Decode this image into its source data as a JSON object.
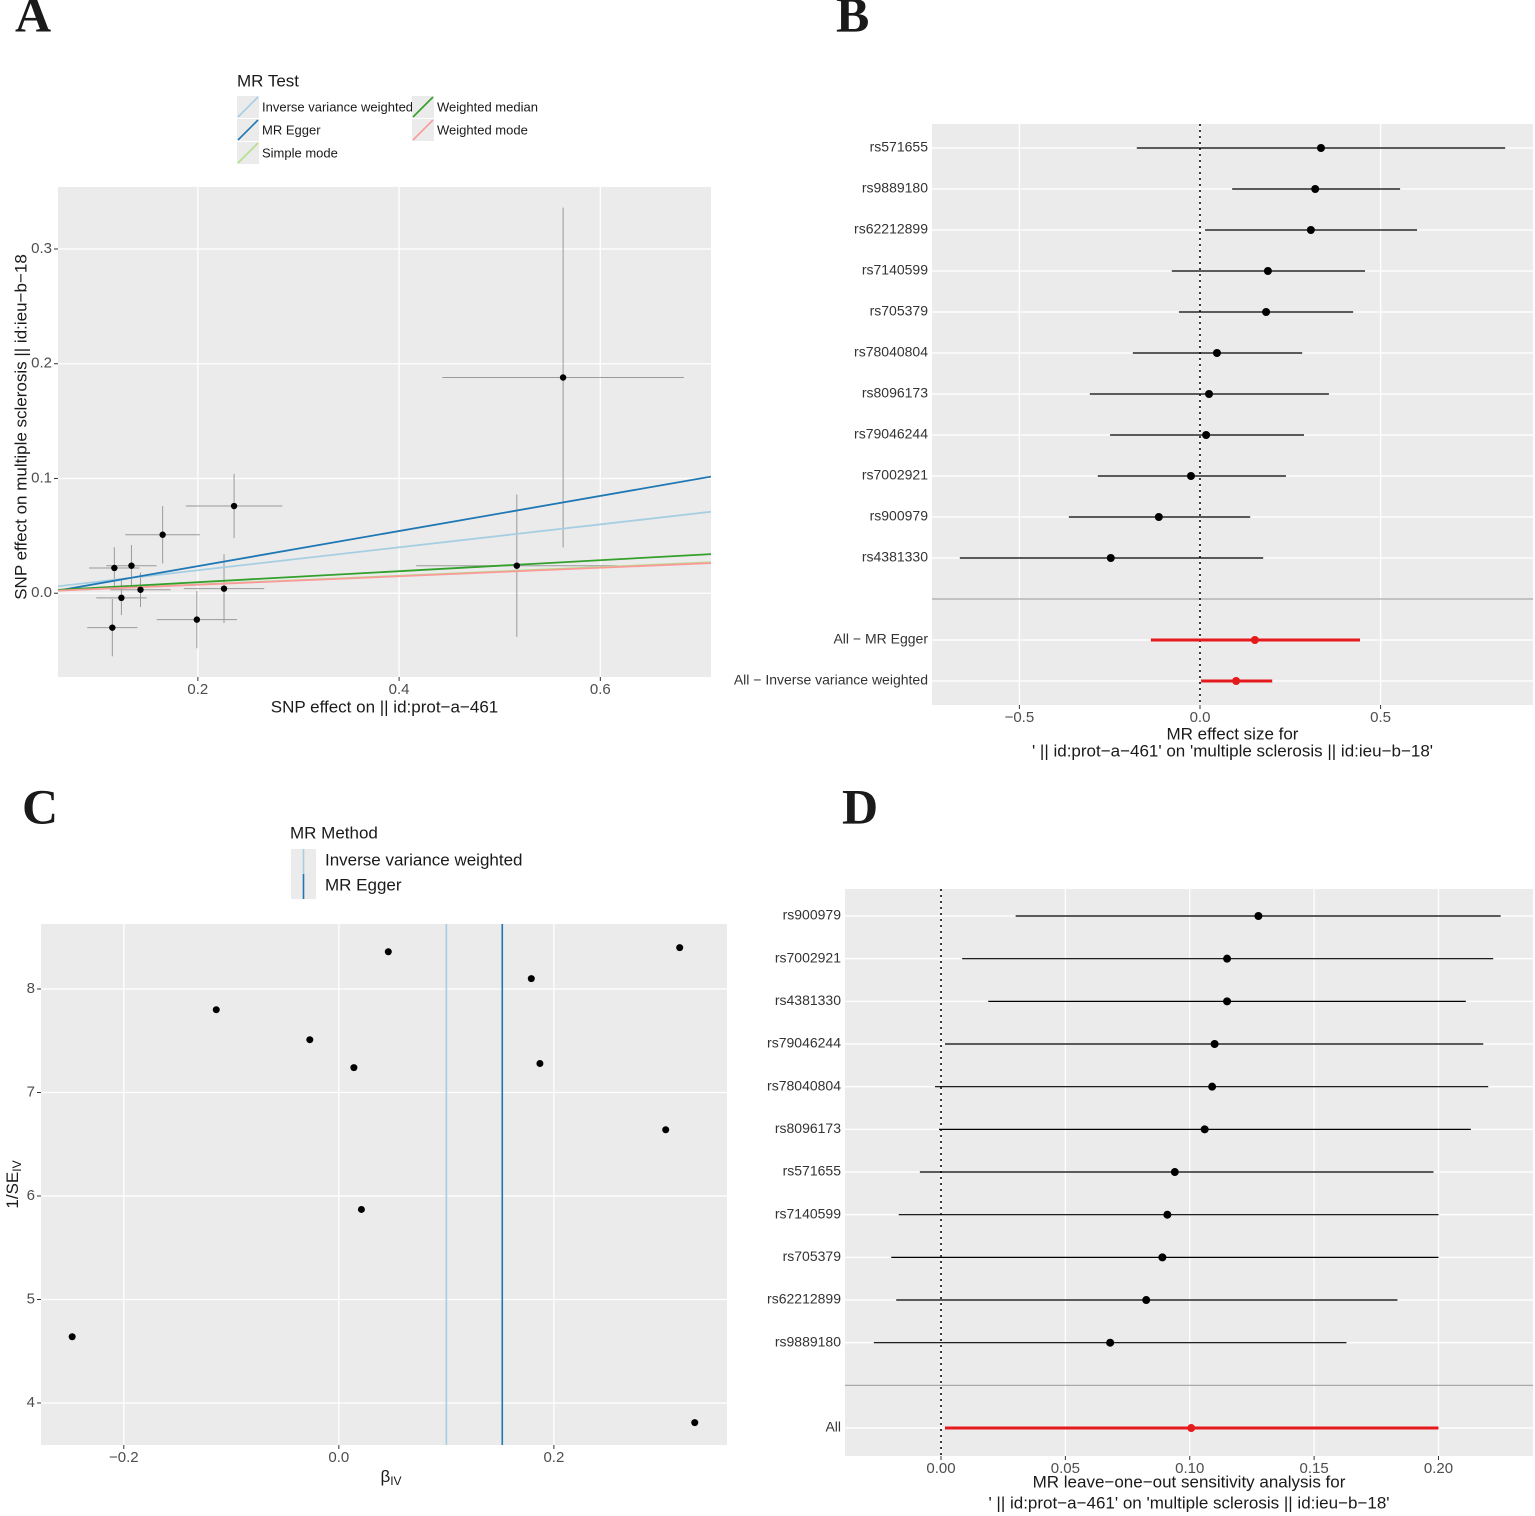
{
  "chart_data": [
    {
      "type": "scatter",
      "panel": "A",
      "legend_title": "MR Test",
      "x_label": "SNP effect on  || id:prot−a−461",
      "y_label": "SNP effect on multiple sclerosis || id:ieu−b−18",
      "x": [
        0.563,
        0.517,
        0.236,
        0.165,
        0.117,
        0.134,
        0.143,
        0.124,
        0.115,
        0.199,
        0.226
      ],
      "values": [
        0.188,
        0.024,
        0.076,
        0.051,
        0.022,
        0.024,
        0.003,
        -0.004,
        -0.03,
        -0.023,
        0.004
      ],
      "x_err": [
        0.12,
        0.1,
        0.048,
        0.037,
        0.025,
        0.025,
        0.03,
        0.025,
        0.025,
        0.04,
        0.04
      ],
      "y_err": [
        0.148,
        0.062,
        0.028,
        0.025,
        0.018,
        0.018,
        0.015,
        0.015,
        0.025,
        0.025,
        0.03
      ],
      "point_color": "#000000",
      "error_color": "#9a9a9a",
      "lines": [
        {
          "name": "Inverse variance weighted",
          "color": "#a6cee3",
          "slope": 0.1,
          "intercept": 0.0
        },
        {
          "name": "MR Egger",
          "color": "#1f78b4",
          "slope": 0.153,
          "intercept": -0.007
        },
        {
          "name": "Simple mode",
          "color": "#b2df8a",
          "slope": 0.038,
          "intercept": 0.0
        },
        {
          "name": "Weighted median",
          "color": "#33a02c",
          "slope": 0.048,
          "intercept": 0.0
        },
        {
          "name": "Weighted mode",
          "color": "#fb9a99",
          "slope": 0.037,
          "intercept": 0.0
        }
      ],
      "xlim": [
        0.061,
        0.71
      ],
      "ylim": [
        -0.073,
        0.354
      ],
      "xticks": [
        0.2,
        0.4,
        0.6
      ],
      "yticks": [
        {
          "value": 0,
          "label": "0.0"
        },
        0.1,
        0.2,
        0.3
      ],
      "grid": true
    },
    {
      "type": "forest",
      "panel": "B",
      "x_label": [
        "MR effect size for",
        "' || id:prot−a−461' on 'multiple sclerosis || id:ieu−b−18'"
      ],
      "categories": [
        "rs571655",
        "rs9889180",
        "rs62212899",
        "rs7140599",
        "rs705379",
        "rs78040804",
        "rs8096173",
        "rs79046244",
        "rs7002921",
        "rs900979",
        "rs4381330",
        null,
        "All − MR Egger",
        "All − Inverse variance weighted"
      ],
      "values": [
        0.335,
        0.319,
        0.307,
        0.188,
        0.183,
        0.047,
        0.025,
        0.017,
        -0.025,
        -0.114,
        -0.247,
        null,
        0.152,
        0.1
      ],
      "lower": [
        -0.175,
        0.089,
        0.014,
        -0.078,
        -0.058,
        -0.186,
        -0.305,
        -0.249,
        -0.283,
        -0.363,
        -0.665,
        null,
        -0.136,
        0.003
      ],
      "upper": [
        0.845,
        0.554,
        0.601,
        0.457,
        0.424,
        0.283,
        0.357,
        0.288,
        0.238,
        0.139,
        0.175,
        null,
        0.443,
        0.2
      ],
      "point_color": "#000000",
      "summary_color": "#e41a1c",
      "reference_line": 0,
      "xlim": [
        -0.742,
        0.922
      ],
      "xticks": [
        {
          "value": -0.5,
          "label": "−0.5"
        },
        {
          "value": 0,
          "label": "0.0"
        },
        0.5
      ],
      "grid": true
    },
    {
      "type": "funnel",
      "panel": "C",
      "legend_title": "MR Method",
      "x_label": "β",
      "x_label_sub": "IV",
      "y_label": "1/SE",
      "y_label_sub": "IV",
      "x": [
        -0.248,
        -0.114,
        -0.027,
        0.014,
        0.021,
        0.046,
        0.179,
        0.187,
        0.304,
        0.317,
        0.331
      ],
      "values": [
        4.64,
        7.8,
        7.51,
        7.24,
        5.87,
        8.36,
        8.1,
        7.28,
        6.64,
        8.4,
        3.81
      ],
      "point_color": "#000000",
      "vlines": [
        {
          "name": "Inverse variance weighted",
          "color": "#a6cee3",
          "value": 0.1
        },
        {
          "name": "MR Egger",
          "color": "#1f78b4",
          "value": 0.152
        }
      ],
      "xlim": [
        -0.277,
        0.361
      ],
      "ylim": [
        3.594,
        8.628
      ],
      "xticks": [
        {
          "value": -0.2,
          "label": "−0.2"
        },
        {
          "value": 0,
          "label": "0.0"
        },
        0.2
      ],
      "yticks": [
        4,
        5,
        6,
        7,
        8
      ],
      "grid": true
    },
    {
      "type": "forest",
      "panel": "D",
      "x_label": [
        "MR leave−one−out sensitivity analysis for",
        "' || id:prot−a−461' on 'multiple sclerosis || id:ieu−b−18'"
      ],
      "categories": [
        "rs900979",
        "rs7002921",
        "rs4381330",
        "rs79046244",
        "rs78040804",
        "rs8096173",
        "rs571655",
        "rs7140599",
        "rs705379",
        "rs62212899",
        "rs9889180",
        null,
        "All"
      ],
      "values": [
        0.1276,
        0.115,
        0.115,
        0.11,
        0.109,
        0.106,
        0.094,
        0.091,
        0.089,
        0.0825,
        0.068,
        null,
        0.1006
      ],
      "lower": [
        0.03,
        0.0085,
        0.019,
        0.0016,
        -0.0024,
        -0.0008,
        -0.0085,
        -0.017,
        -0.02,
        -0.018,
        -0.027,
        null,
        0.0016
      ],
      "upper": [
        0.225,
        0.222,
        0.211,
        0.218,
        0.22,
        0.213,
        0.198,
        0.2,
        0.2,
        0.1835,
        0.163,
        null,
        0.2
      ],
      "point_color": "#000000",
      "summary_color": "#e41a1c",
      "reference_line": 0,
      "xlim": [
        -0.0386,
        0.238
      ],
      "xticks": [
        {
          "value": 0,
          "label": "0.00"
        },
        {
          "value": 0.05,
          "label": "0.05"
        },
        {
          "value": 0.1,
          "label": "0.10"
        },
        {
          "value": 0.15,
          "label": "0.15"
        },
        {
          "value": 0.2,
          "label": "0.20"
        }
      ],
      "grid": true
    }
  ]
}
